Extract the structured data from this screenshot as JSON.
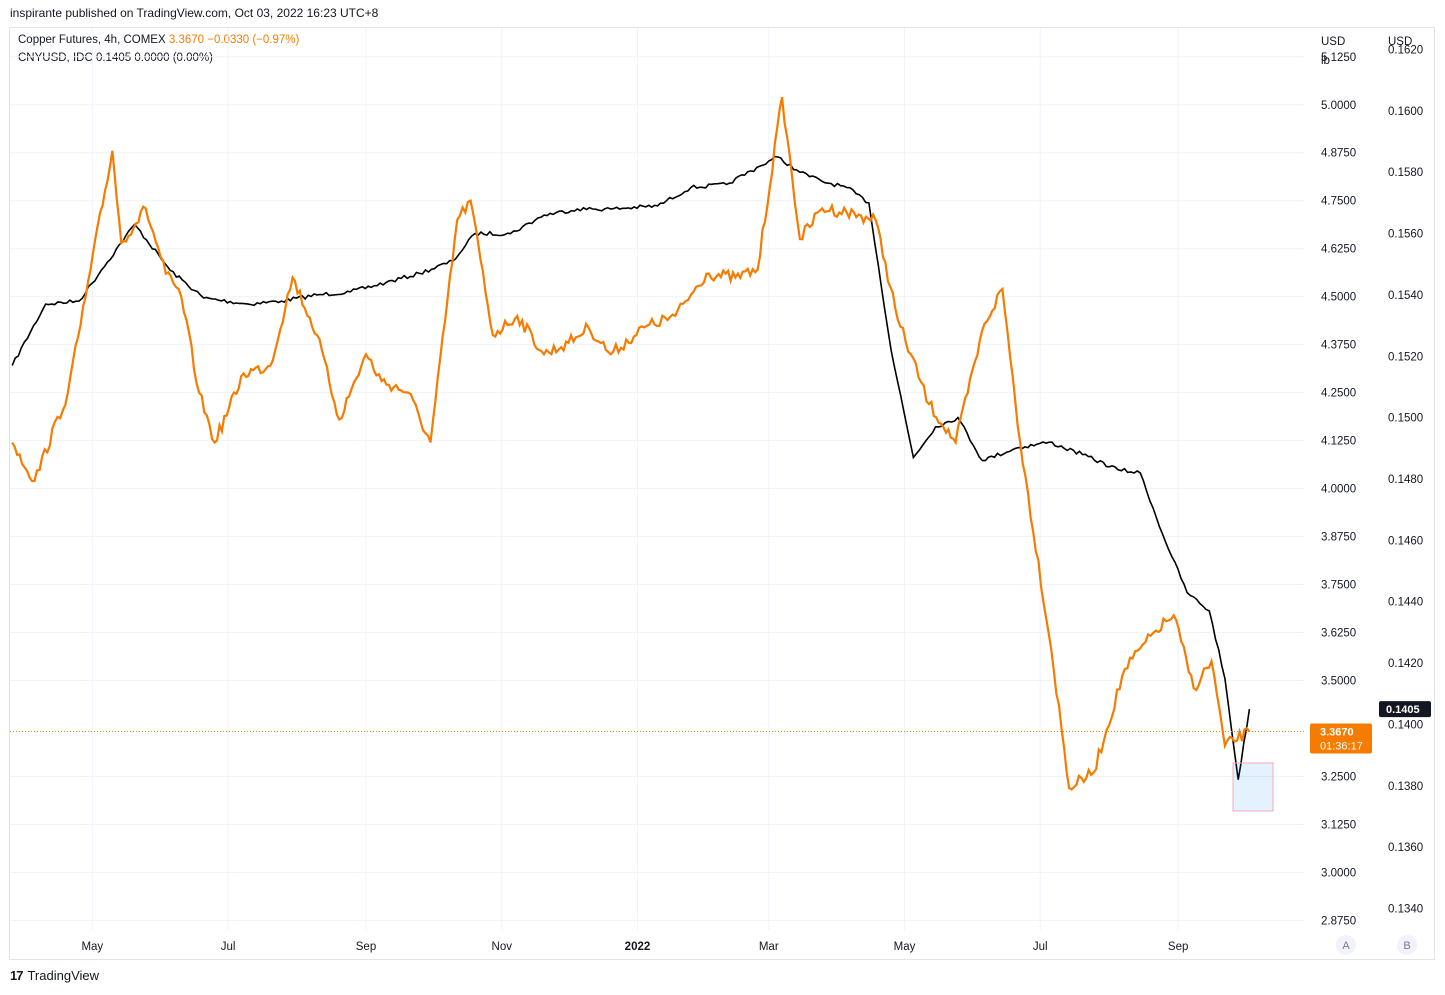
{
  "header": {
    "published_text": "inspirante published on TradingView.com, Oct 03, 2022 16:23 UTC+8"
  },
  "legend": {
    "copper": {
      "name": "Copper Futures, 4h, COMEX",
      "value": "3.3670",
      "change": "−0.0330 (−0.97%)"
    },
    "cny": {
      "name": "CNYUSD, IDC",
      "value": "0.1405",
      "change": "0.0000 (0.00%)"
    }
  },
  "scales": {
    "left_unit": "USD",
    "left_unit2": "lb",
    "right_unit": "USD",
    "scale_a_label": "A",
    "scale_b_label": "B",
    "price_badge": "3.3670",
    "price_timer": "01:36:17",
    "cny_badge": "0.1405"
  },
  "footer": {
    "brand": "TradingView",
    "logo": "17"
  },
  "colors": {
    "copper": "#f57c00",
    "cny": "#000000",
    "grid": "#f0f3fa",
    "axis_text": "#131722"
  },
  "chart_data": {
    "type": "line",
    "title": "",
    "x_ticks": [
      "May",
      "Jul",
      "Sep",
      "Nov",
      "2022",
      "Mar",
      "May",
      "Jul",
      "Sep"
    ],
    "y_left_ticks": [
      "5.1250",
      "5.0000",
      "4.8750",
      "4.7500",
      "4.6250",
      "4.5000",
      "4.3750",
      "4.2500",
      "4.1250",
      "4.0000",
      "3.8750",
      "3.7500",
      "3.6250",
      "3.5000",
      "3.2500",
      "3.1250",
      "3.0000",
      "2.8750"
    ],
    "y_right_ticks": [
      "0.1620",
      "0.1600",
      "0.1580",
      "0.1560",
      "0.1540",
      "0.1520",
      "0.1500",
      "0.1480",
      "0.1460",
      "0.1440",
      "0.1420",
      "0.1400",
      "0.1380",
      "0.1360",
      "0.1340"
    ],
    "ylim_left": [
      2.85,
      5.2
    ],
    "ylim_right": [
      0.1333,
      0.1627
    ],
    "grid": true,
    "series": [
      {
        "name": "Copper Futures, 4h, COMEX",
        "axis": "left",
        "x": [
          "2021-03-26",
          "2021-04-05",
          "2021-04-20",
          "2021-04-28",
          "2021-05-10",
          "2021-05-14",
          "2021-05-25",
          "2021-06-03",
          "2021-06-10",
          "2021-06-18",
          "2021-06-25",
          "2021-07-08",
          "2021-07-20",
          "2021-07-30",
          "2021-08-10",
          "2021-08-20",
          "2021-09-01",
          "2021-09-08",
          "2021-09-20",
          "2021-09-30",
          "2021-10-12",
          "2021-10-18",
          "2021-10-28",
          "2021-11-08",
          "2021-11-20",
          "2021-12-01",
          "2021-12-10",
          "2021-12-20",
          "2022-01-04",
          "2022-01-18",
          "2022-02-01",
          "2022-02-14",
          "2022-02-24",
          "2022-03-07",
          "2022-03-15",
          "2022-03-25",
          "2022-04-05",
          "2022-04-18",
          "2022-04-28",
          "2022-05-12",
          "2022-05-24",
          "2022-06-06",
          "2022-06-14",
          "2022-06-22",
          "2022-07-06",
          "2022-07-14",
          "2022-07-25",
          "2022-08-08",
          "2022-08-22",
          "2022-08-30",
          "2022-09-08",
          "2022-09-16",
          "2022-09-22",
          "2022-10-03"
        ],
        "y": [
          4.12,
          4.02,
          4.25,
          4.5,
          4.88,
          4.64,
          4.73,
          4.56,
          4.5,
          4.25,
          4.12,
          4.3,
          4.32,
          4.55,
          4.4,
          4.18,
          4.35,
          4.28,
          4.25,
          4.12,
          4.7,
          4.75,
          4.4,
          4.45,
          4.35,
          4.38,
          4.42,
          4.35,
          4.42,
          4.45,
          4.56,
          4.55,
          4.57,
          5.02,
          4.65,
          4.73,
          4.72,
          4.7,
          4.44,
          4.22,
          4.12,
          4.43,
          4.52,
          4.12,
          3.58,
          3.22,
          3.26,
          3.53,
          3.63,
          3.67,
          3.48,
          3.55,
          3.33,
          3.367
        ]
      },
      {
        "name": "CNYUSD, IDC",
        "axis": "right",
        "x": [
          "2021-03-26",
          "2021-04-10",
          "2021-04-25",
          "2021-05-05",
          "2021-05-20",
          "2021-06-05",
          "2021-06-20",
          "2021-07-10",
          "2021-07-25",
          "2021-08-10",
          "2021-08-25",
          "2021-09-10",
          "2021-09-25",
          "2021-10-10",
          "2021-10-20",
          "2021-11-05",
          "2021-11-20",
          "2021-12-05",
          "2021-12-20",
          "2022-01-10",
          "2022-01-25",
          "2022-02-10",
          "2022-02-25",
          "2022-03-05",
          "2022-03-15",
          "2022-03-25",
          "2022-04-05",
          "2022-04-15",
          "2022-04-25",
          "2022-05-05",
          "2022-05-15",
          "2022-05-25",
          "2022-06-05",
          "2022-06-20",
          "2022-07-05",
          "2022-07-20",
          "2022-08-05",
          "2022-08-15",
          "2022-08-25",
          "2022-09-05",
          "2022-09-15",
          "2022-09-22",
          "2022-09-28",
          "2022-10-03"
        ],
        "y": [
          0.1517,
          0.1537,
          0.1538,
          0.1548,
          0.1563,
          0.1548,
          0.1539,
          0.1537,
          0.1538,
          0.154,
          0.1541,
          0.1544,
          0.1547,
          0.1551,
          0.156,
          0.156,
          0.1566,
          0.1568,
          0.1568,
          0.1569,
          0.1575,
          0.1576,
          0.1582,
          0.1585,
          0.158,
          0.1577,
          0.1575,
          0.157,
          0.1522,
          0.1487,
          0.1497,
          0.15,
          0.1486,
          0.149,
          0.1492,
          0.1488,
          0.1483,
          0.1482,
          0.1462,
          0.1443,
          0.1437,
          0.1415,
          0.1382,
          0.1405
        ]
      }
    ]
  }
}
